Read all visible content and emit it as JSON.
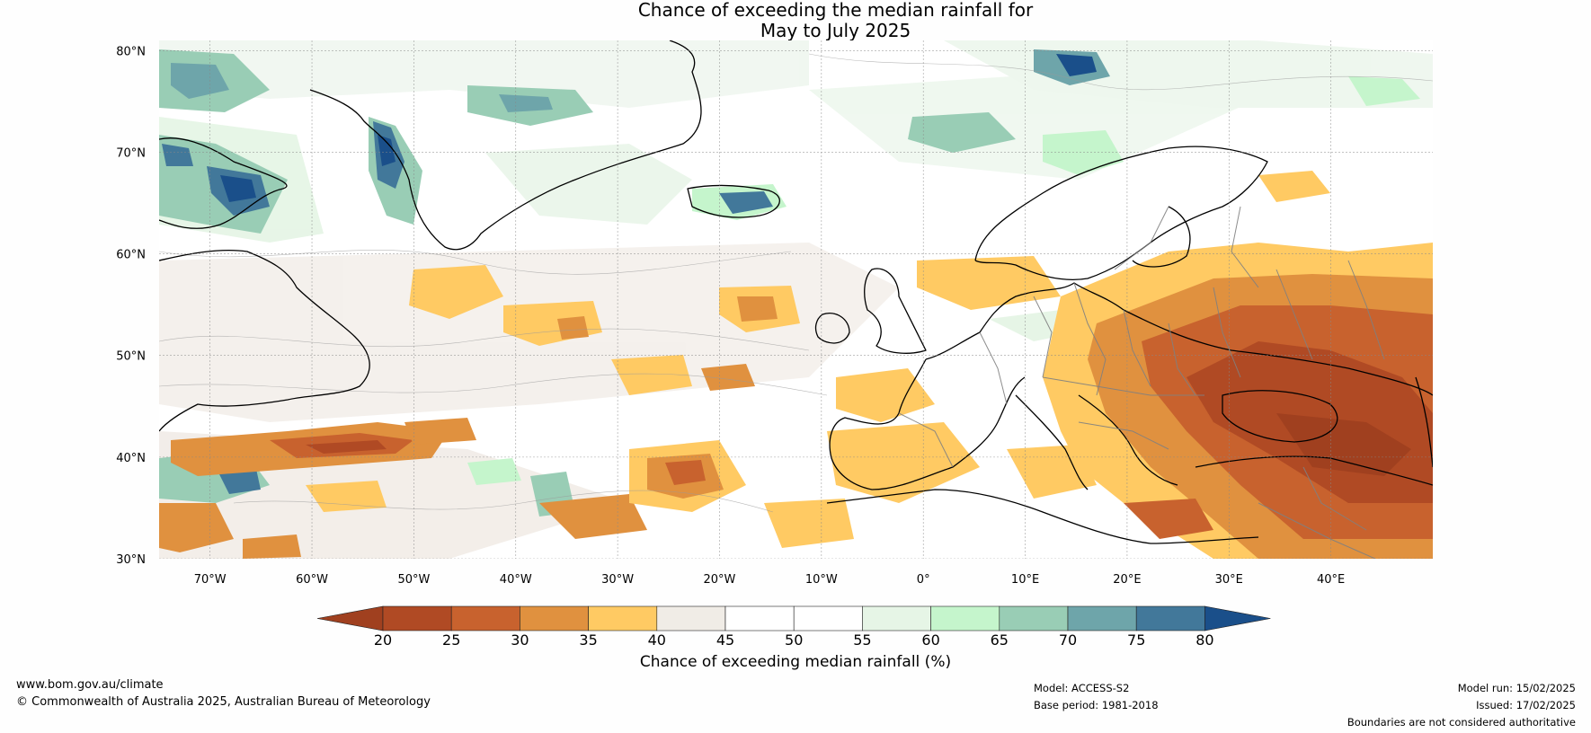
{
  "title": {
    "line1": "Chance of exceeding the median rainfall for",
    "line2": "May to July 2025"
  },
  "map": {
    "lat_labels": [
      "80°N",
      "70°N",
      "60°N",
      "50°N",
      "40°N",
      "30°N"
    ],
    "lon_labels": [
      "70°W",
      "60°W",
      "50°W",
      "40°W",
      "30°W",
      "20°W",
      "10°W",
      "0°",
      "10°E",
      "20°E",
      "30°E",
      "40°E"
    ],
    "lat_range": [
      30,
      81
    ],
    "lon_range": [
      -75,
      50
    ],
    "background_color": "#fefefe",
    "coastline_color": "#000000",
    "border_color": "#808080"
  },
  "colorbar": {
    "ticks": [
      "20",
      "25",
      "30",
      "35",
      "40",
      "45",
      "50",
      "55",
      "60",
      "65",
      "70",
      "75",
      "80"
    ],
    "colors": [
      "#a0401f",
      "#b04a24",
      "#c8622e",
      "#e0913f",
      "#ffca63",
      "#f0ece6",
      "#ffffff",
      "#ffffff",
      "#e6f5e6",
      "#c5f5cc",
      "#99cdb5",
      "#6ea5aa",
      "#42789a",
      "#1a4f8a"
    ],
    "label": "Chance of exceeding median rainfall (%)"
  },
  "footer": {
    "website": "www.bom.gov.au/climate",
    "copyright": "© Commonwealth of Australia 2025, Australian Bureau of Meteorology",
    "model": "Model: ACCESS-S2",
    "base_period": "Base period: 1981-2018",
    "model_run": "Model run: 15/02/2025",
    "issued": "Issued: 17/02/2025",
    "disclaimer": "Boundaries are not considered authoritative"
  }
}
